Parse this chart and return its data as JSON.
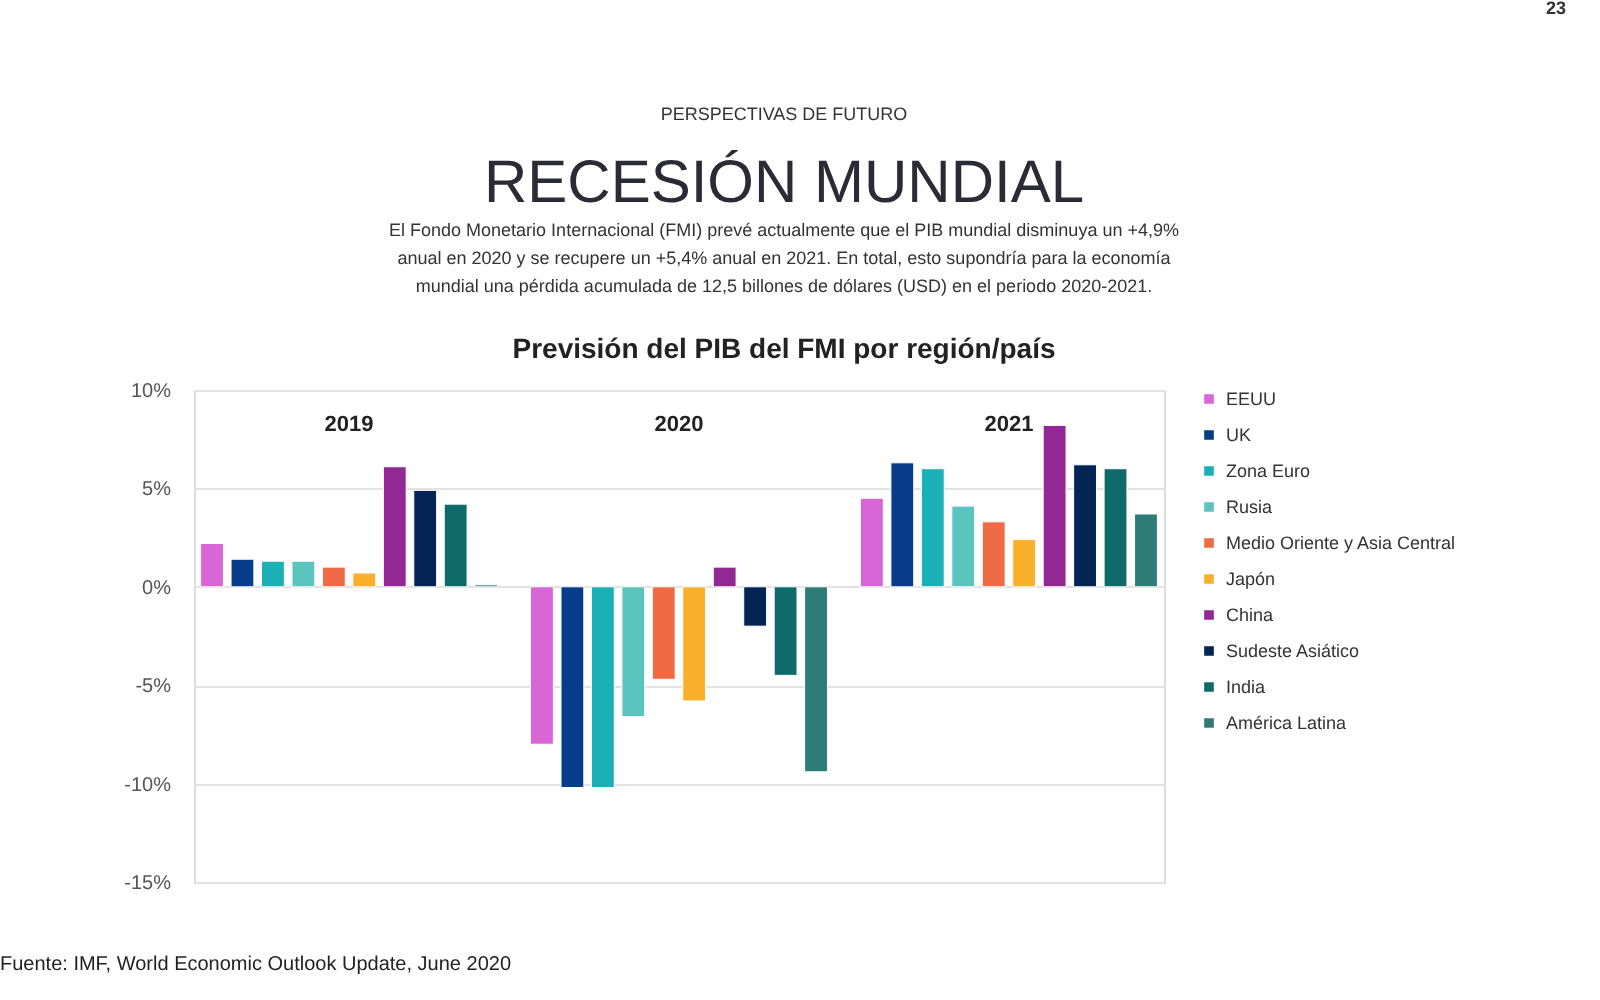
{
  "chart_data": {
    "type": "bar",
    "title": "Previsión del PIB del FMI por región/país",
    "annotations": [
      "PERSPECTIVAS DE FUTURO",
      "RECESIÓN MUNDIAL",
      "El Fondo Monetario Internacional (FMI) prevé actualmente que el PIB mundial disminuya un +4,9%",
      "anual en 2020 y se recupere un +5,4% anual en 2021. En total, esto supondría para la economía",
      "mundial una pérdida acumulada de 12,5 billones de dólares (USD) en el periodo 2020-2021.",
      "Fuente: IMF, World Economic Outlook Update, June 2020",
      "23"
    ],
    "categories": [
      "2019",
      "2020",
      "2021"
    ],
    "series": [
      {
        "name": "EEUU",
        "color": "#d966d6",
        "values": [
          2.2,
          -8.0,
          4.5
        ]
      },
      {
        "name": "UK",
        "color": "#063c8a",
        "values": [
          1.4,
          -10.2,
          6.3
        ]
      },
      {
        "name": "Zona Euro",
        "color": "#1ab0b5",
        "values": [
          1.3,
          -10.2,
          6.0
        ]
      },
      {
        "name": "Rusia",
        "color": "#5cc4bf",
        "values": [
          1.3,
          -6.6,
          4.1
        ]
      },
      {
        "name": "Medio Oriente y Asia Central",
        "color": "#f06a45",
        "values": [
          1.0,
          -4.7,
          3.3
        ]
      },
      {
        "name": "Japón",
        "color": "#fbb02b",
        "values": [
          0.7,
          -5.8,
          2.4
        ]
      },
      {
        "name": "China",
        "color": "#912893",
        "values": [
          6.1,
          1.0,
          8.2
        ]
      },
      {
        "name": "Sudeste Asiático",
        "color": "#032454",
        "values": [
          4.9,
          -2.0,
          6.2
        ]
      },
      {
        "name": "India",
        "color": "#0f6a6a",
        "values": [
          4.2,
          -4.5,
          6.0
        ]
      },
      {
        "name": "América Latina",
        "color": "#2e7c77",
        "values": [
          0.1,
          -9.4,
          3.7
        ]
      }
    ],
    "ylim": [
      -15,
      10
    ],
    "yticks": [
      {
        "value": -15,
        "label": "-15%"
      },
      {
        "value": -10,
        "label": "-10%"
      },
      {
        "value": -5,
        "label": "-5%"
      },
      {
        "value": 0,
        "label": "0%"
      },
      {
        "value": 5,
        "label": "5%"
      },
      {
        "value": 10,
        "label": "10%"
      }
    ],
    "grid": "y",
    "legend": "right"
  }
}
